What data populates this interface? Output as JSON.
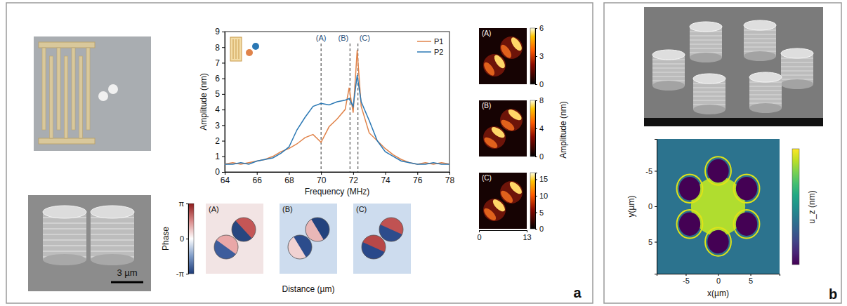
{
  "figure": {
    "panel_labels": [
      "a",
      "b"
    ],
    "scale_bar": "3 µm"
  },
  "chart_data": [
    {
      "type": "line",
      "x_label": "Frequency (MHz)",
      "y_label": "Amplitude (nm)",
      "x": [
        64,
        64.5,
        65,
        65.5,
        66,
        66.5,
        67,
        67.5,
        68,
        68.5,
        69,
        69.5,
        70,
        70.5,
        71,
        71.5,
        71.75,
        72,
        72.25,
        72.5,
        73,
        73.5,
        74,
        74.5,
        75,
        75.5,
        76,
        76.5,
        77,
        77.5,
        78
      ],
      "series": [
        {
          "name": "P1",
          "color": "#e0834a",
          "values": [
            0.5,
            0.6,
            0.5,
            0.6,
            0.7,
            0.8,
            1.0,
            1.3,
            1.5,
            1.8,
            2.2,
            2.4,
            1.9,
            2.9,
            3.4,
            4.0,
            5.4,
            3.8,
            7.8,
            4.2,
            2.5,
            2.0,
            1.5,
            1.1,
            0.8,
            0.6,
            0.5,
            0.6,
            0.5,
            0.6,
            0.5
          ]
        },
        {
          "name": "P2",
          "color": "#2b78b4",
          "values": [
            0.5,
            0.5,
            0.6,
            0.5,
            0.7,
            0.8,
            0.9,
            1.2,
            1.6,
            2.7,
            3.5,
            4.2,
            4.4,
            4.3,
            4.5,
            4.6,
            4.7,
            4.2,
            6.2,
            4.5,
            3.3,
            2.0,
            1.3,
            1.0,
            0.7,
            0.6,
            0.5,
            0.5,
            0.6,
            0.5,
            0.5
          ]
        }
      ],
      "xlim": [
        64,
        78
      ],
      "xticks": [
        64,
        66,
        68,
        70,
        72,
        74,
        76,
        78
      ],
      "ylim": [
        0,
        9
      ],
      "yticks": [
        0,
        1,
        2,
        3,
        4,
        5,
        6,
        7,
        8,
        9
      ],
      "legend": "upper right",
      "annotations": [
        {
          "x": 70,
          "label": "(A)"
        },
        {
          "x": 71.8,
          "label": "(B)"
        },
        {
          "x": 72.3,
          "label": "(C)"
        }
      ]
    },
    {
      "type": "heatmap",
      "panels": [
        "(A)",
        "(B)",
        "(C)"
      ],
      "x_label": "Distance (µm)",
      "colorbar_label": "Phase",
      "colorbar_range": [
        -3.1416,
        3.1416
      ],
      "colorbar_ticks": [
        {
          "value": -3.1416,
          "label": "-π"
        },
        0,
        {
          "value": 3.1416,
          "label": "π"
        }
      ]
    },
    {
      "type": "heatmap",
      "panels": [
        {
          "label": "(A)",
          "colorbar_range": [
            0,
            6
          ],
          "colorbar_ticks": [
            0,
            3,
            6
          ]
        },
        {
          "label": "(B)",
          "colorbar_range": [
            0,
            8
          ],
          "colorbar_ticks": [
            0,
            4,
            8
          ]
        },
        {
          "label": "(C)",
          "colorbar_range": [
            0,
            17
          ],
          "colorbar_ticks": [
            0,
            5,
            10,
            15
          ]
        }
      ],
      "colorbar_label": "Amplitude (nm)",
      "xlim": [
        0,
        13
      ],
      "xticks": [
        0,
        13
      ]
    },
    {
      "type": "heatmap",
      "x_label": "x(µm)",
      "y_label": "y(µm)",
      "xlim": [
        -9.5,
        9.5
      ],
      "xticks": [
        -5,
        0,
        5
      ],
      "ylim": [
        -9.5,
        9.5
      ],
      "yticks": [
        -5,
        0,
        5
      ],
      "colorbar_label": "u_z (nm)"
    }
  ]
}
